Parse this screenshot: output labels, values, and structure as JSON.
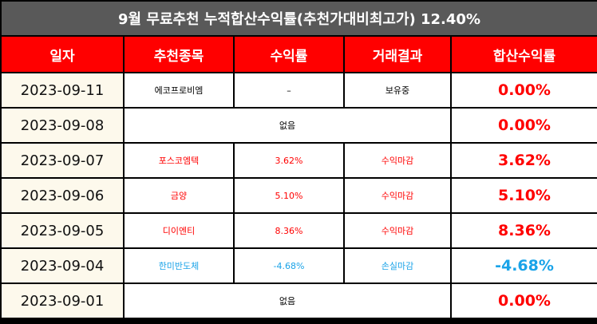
{
  "title": "9월 무료추천 누적합산수익률(추천가대비최고가) 12.40%",
  "headers": [
    "일자",
    "추천종목",
    "수익률",
    "거래결과",
    "합산수익률"
  ],
  "colors": {
    "header_bg": "#ff0000",
    "title_bg": "#595959",
    "positive": "#ff0000",
    "negative": "#1aa3e8",
    "date_bg": "#fdf9ec"
  },
  "rows": [
    {
      "date": "2023-09-11",
      "stock": "에코프로비엠",
      "return": "–",
      "result": "보유중",
      "total": "0.00%",
      "tone": "none",
      "merged": false
    },
    {
      "date": "2023-09-08",
      "note": "없음",
      "total": "0.00%",
      "tone": "none",
      "merged": true
    },
    {
      "date": "2023-09-07",
      "stock": "포스코엠텍",
      "return": "3.62%",
      "result": "수익마감",
      "total": "3.62%",
      "tone": "pos",
      "merged": false
    },
    {
      "date": "2023-09-06",
      "stock": "금양",
      "return": "5.10%",
      "result": "수익마감",
      "total": "5.10%",
      "tone": "pos",
      "merged": false
    },
    {
      "date": "2023-09-05",
      "stock": "디이엔티",
      "return": "8.36%",
      "result": "수익마감",
      "total": "8.36%",
      "tone": "pos",
      "merged": false
    },
    {
      "date": "2023-09-04",
      "stock": "한미반도체",
      "return": "-4.68%",
      "result": "손실마감",
      "total": "-4.68%",
      "tone": "neg",
      "merged": false
    },
    {
      "date": "2023-09-01",
      "note": "없음",
      "total": "0.00%",
      "tone": "none",
      "merged": true
    }
  ]
}
